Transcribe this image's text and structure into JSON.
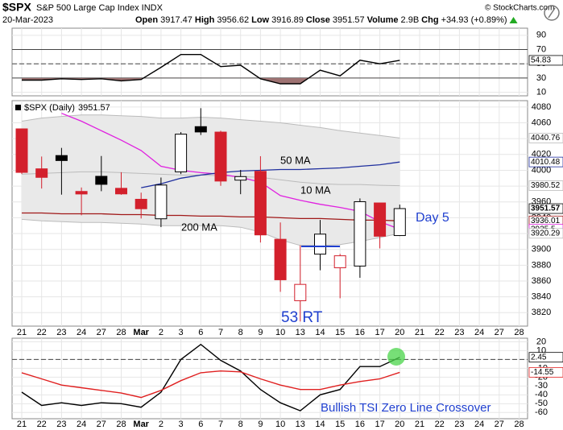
{
  "header": {
    "symbol": "$SPX",
    "name": "S&P 500 Large Cap Index INDX",
    "copyright": "© StockCharts.com",
    "date": "20-Mar-2023",
    "quote": [
      {
        "label": "Open",
        "value": "3917.47"
      },
      {
        "label": "High",
        "value": "3956.62"
      },
      {
        "label": "Low",
        "value": "3916.89"
      },
      {
        "label": "Close",
        "value": "3951.57"
      },
      {
        "label": "Volume",
        "value": "2.9B"
      },
      {
        "label": "Chg",
        "value": "+34.93 (+0.89%)"
      }
    ]
  },
  "chart_data": [
    {
      "type": "line",
      "ylim": [
        5,
        100
      ],
      "yticks": [
        90,
        70,
        50,
        30,
        10
      ],
      "levels": [
        70,
        30
      ],
      "midline": 50,
      "series": [
        {
          "color": "#000000",
          "fill": "#9e7272",
          "values": [
            27,
            27,
            29,
            28,
            29,
            26,
            28,
            45,
            63,
            63,
            46,
            48,
            29,
            22,
            22,
            41,
            33,
            55,
            50,
            54.83,
            null,
            null,
            null,
            null,
            null,
            null
          ]
        }
      ]
    },
    {
      "type": "candlestick",
      "title": "$SPX (Daily)",
      "ylim": [
        3803,
        4088
      ],
      "yticks": [
        3820,
        3840,
        3860,
        3880,
        3900,
        3920,
        3940,
        3960,
        3980,
        4000,
        4020,
        4040,
        4060,
        4080
      ],
      "categories": [
        "21",
        "22",
        "23",
        "24",
        "27",
        "28",
        "Mar",
        "2",
        "3",
        "6",
        "7",
        "8",
        "9",
        "10",
        "13",
        "14",
        "15",
        "16",
        "17",
        "20",
        "21",
        "22",
        "23",
        "24",
        "27",
        "28"
      ],
      "open": [
        4052.35,
        4001.83,
        4018.6,
        3973.24,
        3992.36,
        3977.19,
        3963.34,
        3938.68,
        3998.02,
        4055.15,
        4048.26,
        3987.55,
        3998.66,
        3912.77,
        3835.12,
        3894.01,
        3876.74,
        3878.93,
        3958.69,
        3917.47,
        null,
        null,
        null,
        null,
        null,
        null
      ],
      "high": [
        4052.35,
        4017.37,
        4028.3,
        3978.25,
        4018.05,
        3997.5,
        3971.73,
        3990.84,
        4048.29,
        4078.49,
        4050.0,
        4000.41,
        4017.81,
        3934.05,
        3905.05,
        3937.29,
        3894.26,
        3964.46,
        3958.91,
        3956.62,
        null,
        null,
        null,
        null,
        null,
        null
      ],
      "low": [
        3995.19,
        3976.9,
        3969.19,
        3943.08,
        3973.55,
        3968.98,
        3939.05,
        3928.16,
        3995.17,
        4044.61,
        3980.31,
        3969.76,
        3908.7,
        3846.32,
        3808.86,
        3873.63,
        3838.24,
        3864.11,
        3901.27,
        3916.89,
        null,
        null,
        null,
        null,
        null,
        null
      ],
      "close": [
        3997.34,
        3991.05,
        4012.32,
        3970.04,
        3982.24,
        3970.15,
        3951.39,
        3981.35,
        4045.64,
        4048.42,
        3986.37,
        3992.01,
        3918.32,
        3861.59,
        3855.76,
        3919.29,
        3891.93,
        3960.28,
        3916.64,
        3951.57,
        null,
        null,
        null,
        null,
        null,
        null
      ],
      "candle_colors": [
        "#d3202c",
        "#d3202c",
        "#000000",
        "#d3202c",
        "#000000",
        "#d3202c",
        "#d3202c",
        "#000000",
        "#000000",
        "#000000",
        "#d3202c",
        "#000000",
        "#d3202c",
        "#d3202c",
        "#d3202c",
        "#000000",
        "#d3202c",
        "#000000",
        "#d3202c",
        "#000000",
        null,
        null,
        null,
        null,
        null,
        null
      ],
      "band": {
        "fill": "#e9e9e9",
        "color": "#bbbbbb",
        "upper": [
          4062,
          4066,
          4068,
          4070,
          4070,
          4069,
          4068,
          4066,
          4066,
          4067,
          4066,
          4064,
          4062,
          4060,
          4057,
          4054,
          4050,
          4047,
          4044,
          4040.76,
          null,
          null,
          null,
          null,
          null,
          null
        ],
        "middle": [
          3995,
          3996,
          3997,
          3998,
          3998,
          3997,
          3996,
          3995,
          3994,
          3994,
          3993,
          3992,
          3991,
          3988,
          3985,
          3983,
          3982,
          3982,
          3981,
          3980.52,
          null,
          null,
          null,
          null,
          null,
          null
        ],
        "lower": [
          3938,
          3936,
          3935,
          3934,
          3934,
          3933,
          3932,
          3930,
          3930,
          3930,
          3930,
          3928,
          3922,
          3912,
          3905,
          3905,
          3906,
          3910,
          3915,
          3920.29,
          null,
          null,
          null,
          null,
          null,
          null
        ]
      },
      "series": [
        {
          "color": "#e020e0",
          "values": [
            null,
            null,
            4072,
            4062,
            4050,
            4038,
            4025,
            4005,
            4000,
            3997,
            3995,
            3991,
            3985,
            3968,
            3962,
            3957,
            3953,
            3948,
            3935,
            3925.5,
            null,
            null,
            null,
            null,
            null,
            null
          ]
        },
        {
          "color": "#1f2f9e",
          "values": [
            null,
            null,
            null,
            null,
            null,
            null,
            3978,
            3983,
            3990,
            3994,
            3997,
            3999,
            4000,
            4001,
            4001,
            4002,
            4003,
            4005,
            4007,
            4010.48,
            null,
            null,
            null,
            null,
            null,
            null
          ]
        },
        {
          "color": "#a01818",
          "values": [
            3946,
            3946,
            3945,
            3945,
            3945,
            3944,
            3944,
            3943,
            3943,
            3942,
            3942,
            3941,
            3941,
            3940,
            3939,
            3939,
            3938,
            3937,
            3937,
            3936.01,
            null,
            null,
            null,
            null,
            null,
            null
          ]
        }
      ],
      "annotations": [
        "50 MA",
        "10 MA",
        "200 MA",
        "Day 5",
        "53 RT"
      ]
    },
    {
      "type": "line",
      "ylim": [
        -67,
        24
      ],
      "yticks": [
        20,
        10,
        0,
        -10,
        -20,
        -30,
        -40,
        -50,
        -60
      ],
      "midline": 0,
      "categories": [
        "21",
        "22",
        "23",
        "24",
        "27",
        "28",
        "Mar",
        "2",
        "3",
        "6",
        "7",
        "8",
        "9",
        "10",
        "13",
        "14",
        "15",
        "16",
        "17",
        "20",
        "21",
        "22",
        "23",
        "24",
        "27",
        "28"
      ],
      "series": [
        {
          "color": "#000000",
          "values": [
            -37,
            -52,
            -49,
            -52,
            -49,
            -50,
            -54,
            -37,
            0,
            17,
            -1,
            -13,
            -34,
            -49,
            -58,
            -40,
            -34,
            -8,
            -8,
            2.45,
            null,
            null,
            null,
            null,
            null,
            null
          ]
        },
        {
          "color": "#e02020",
          "values": [
            -15,
            -22,
            -29,
            -32,
            -35,
            -38,
            -43,
            -35,
            -24,
            -15,
            -13,
            -14,
            -22,
            -29,
            -34,
            -34,
            -29,
            -25,
            -22,
            -14.55,
            null,
            null,
            null,
            null,
            null,
            null
          ]
        }
      ],
      "annotations": [
        "Bullish TSI Zero Line Crossover"
      ]
    }
  ]
}
